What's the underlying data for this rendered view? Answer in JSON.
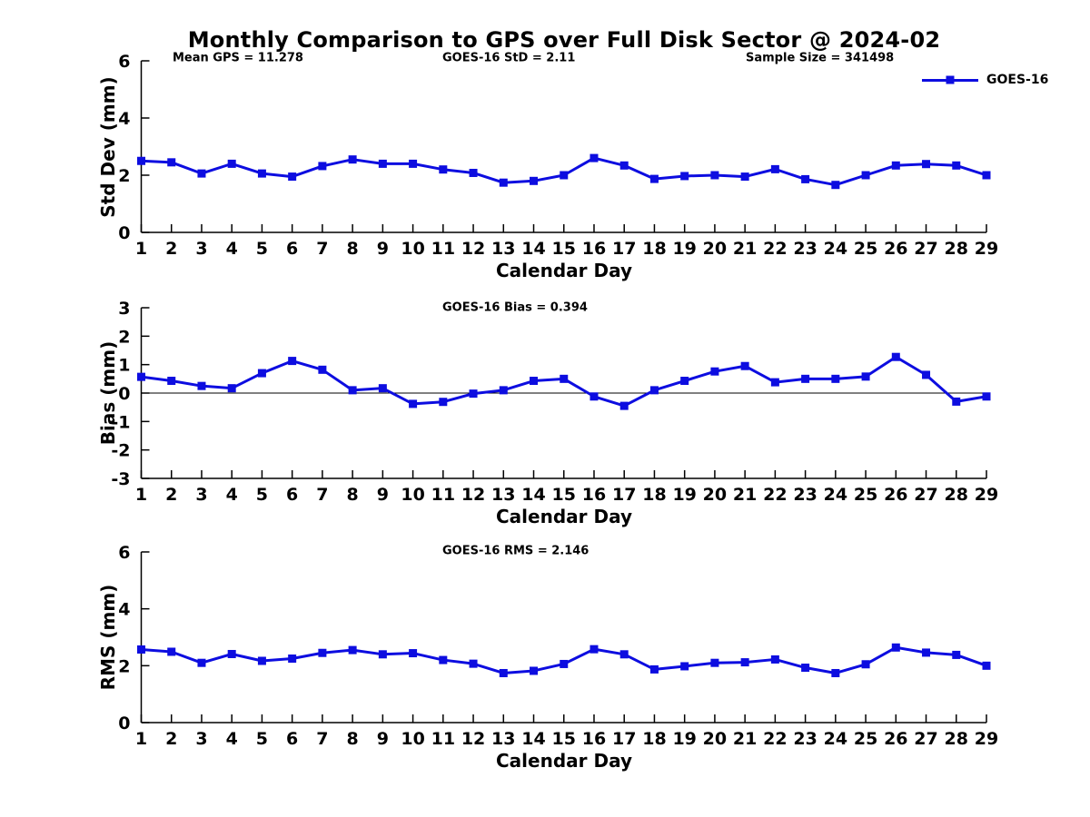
{
  "title": "Monthly Comparison to GPS over Full Disk Sector @ 2024-02",
  "legend": {
    "label": "GOES-16"
  },
  "colors": {
    "line": "#0d0de0",
    "axis": "#000000",
    "text": "#000000",
    "background": "#ffffff"
  },
  "chart_data": [
    {
      "type": "line",
      "name": "std-dev",
      "annotations": [
        "Mean GPS = 11.278",
        "GOES-16 StD = 2.11",
        "Sample Size = 341498"
      ],
      "xlabel": "Calendar Day",
      "ylabel": "Std Dev (mm)",
      "ylim": [
        0,
        6
      ],
      "yticks": [
        0,
        2,
        4,
        6
      ],
      "grid": false,
      "legend_position": "top-right",
      "x": [
        1,
        2,
        3,
        4,
        5,
        6,
        7,
        8,
        9,
        10,
        11,
        12,
        13,
        14,
        15,
        16,
        17,
        18,
        19,
        20,
        21,
        22,
        23,
        24,
        25,
        26,
        27,
        28,
        29
      ],
      "series": [
        {
          "name": "GOES-16",
          "values": [
            2.5,
            2.45,
            2.06,
            2.4,
            2.06,
            1.95,
            2.32,
            2.55,
            2.4,
            2.4,
            2.2,
            2.08,
            1.74,
            1.8,
            2.0,
            2.6,
            2.34,
            1.87,
            1.97,
            2.0,
            1.95,
            2.21,
            1.86,
            1.66,
            2.0,
            2.34,
            2.39,
            2.34,
            2.0
          ]
        }
      ]
    },
    {
      "type": "line",
      "name": "bias",
      "annotations": [
        "GOES-16 Bias = 0.394"
      ],
      "xlabel": "Calendar Day",
      "ylabel": "Bias (mm)",
      "ylim": [
        -3,
        3
      ],
      "yticks": [
        -3,
        -2,
        -1,
        0,
        1,
        2,
        3
      ],
      "zero_line": true,
      "grid": false,
      "x": [
        1,
        2,
        3,
        4,
        5,
        6,
        7,
        8,
        9,
        10,
        11,
        12,
        13,
        14,
        15,
        16,
        17,
        18,
        19,
        20,
        21,
        22,
        23,
        24,
        25,
        26,
        27,
        28,
        29
      ],
      "series": [
        {
          "name": "GOES-16",
          "values": [
            0.57,
            0.43,
            0.25,
            0.17,
            0.7,
            1.13,
            0.82,
            0.1,
            0.17,
            -0.38,
            -0.31,
            -0.02,
            0.1,
            0.43,
            0.5,
            -0.12,
            -0.45,
            0.1,
            0.43,
            0.76,
            0.95,
            0.38,
            0.5,
            0.5,
            0.58,
            1.27,
            0.64,
            -0.3,
            -0.12
          ]
        }
      ]
    },
    {
      "type": "line",
      "name": "rms",
      "annotations": [
        "GOES-16 RMS = 2.146"
      ],
      "xlabel": "Calendar Day",
      "ylabel": "RMS (mm)",
      "ylim": [
        0,
        6
      ],
      "yticks": [
        0,
        2,
        4,
        6
      ],
      "grid": false,
      "x": [
        1,
        2,
        3,
        4,
        5,
        6,
        7,
        8,
        9,
        10,
        11,
        12,
        13,
        14,
        15,
        16,
        17,
        18,
        19,
        20,
        21,
        22,
        23,
        24,
        25,
        26,
        27,
        28,
        29
      ],
      "series": [
        {
          "name": "GOES-16",
          "values": [
            2.57,
            2.49,
            2.1,
            2.41,
            2.17,
            2.25,
            2.45,
            2.55,
            2.4,
            2.44,
            2.2,
            2.07,
            1.74,
            1.82,
            2.06,
            2.58,
            2.4,
            1.87,
            1.98,
            2.1,
            2.12,
            2.22,
            1.93,
            1.74,
            2.05,
            2.64,
            2.46,
            2.38,
            2.0
          ]
        }
      ]
    }
  ]
}
